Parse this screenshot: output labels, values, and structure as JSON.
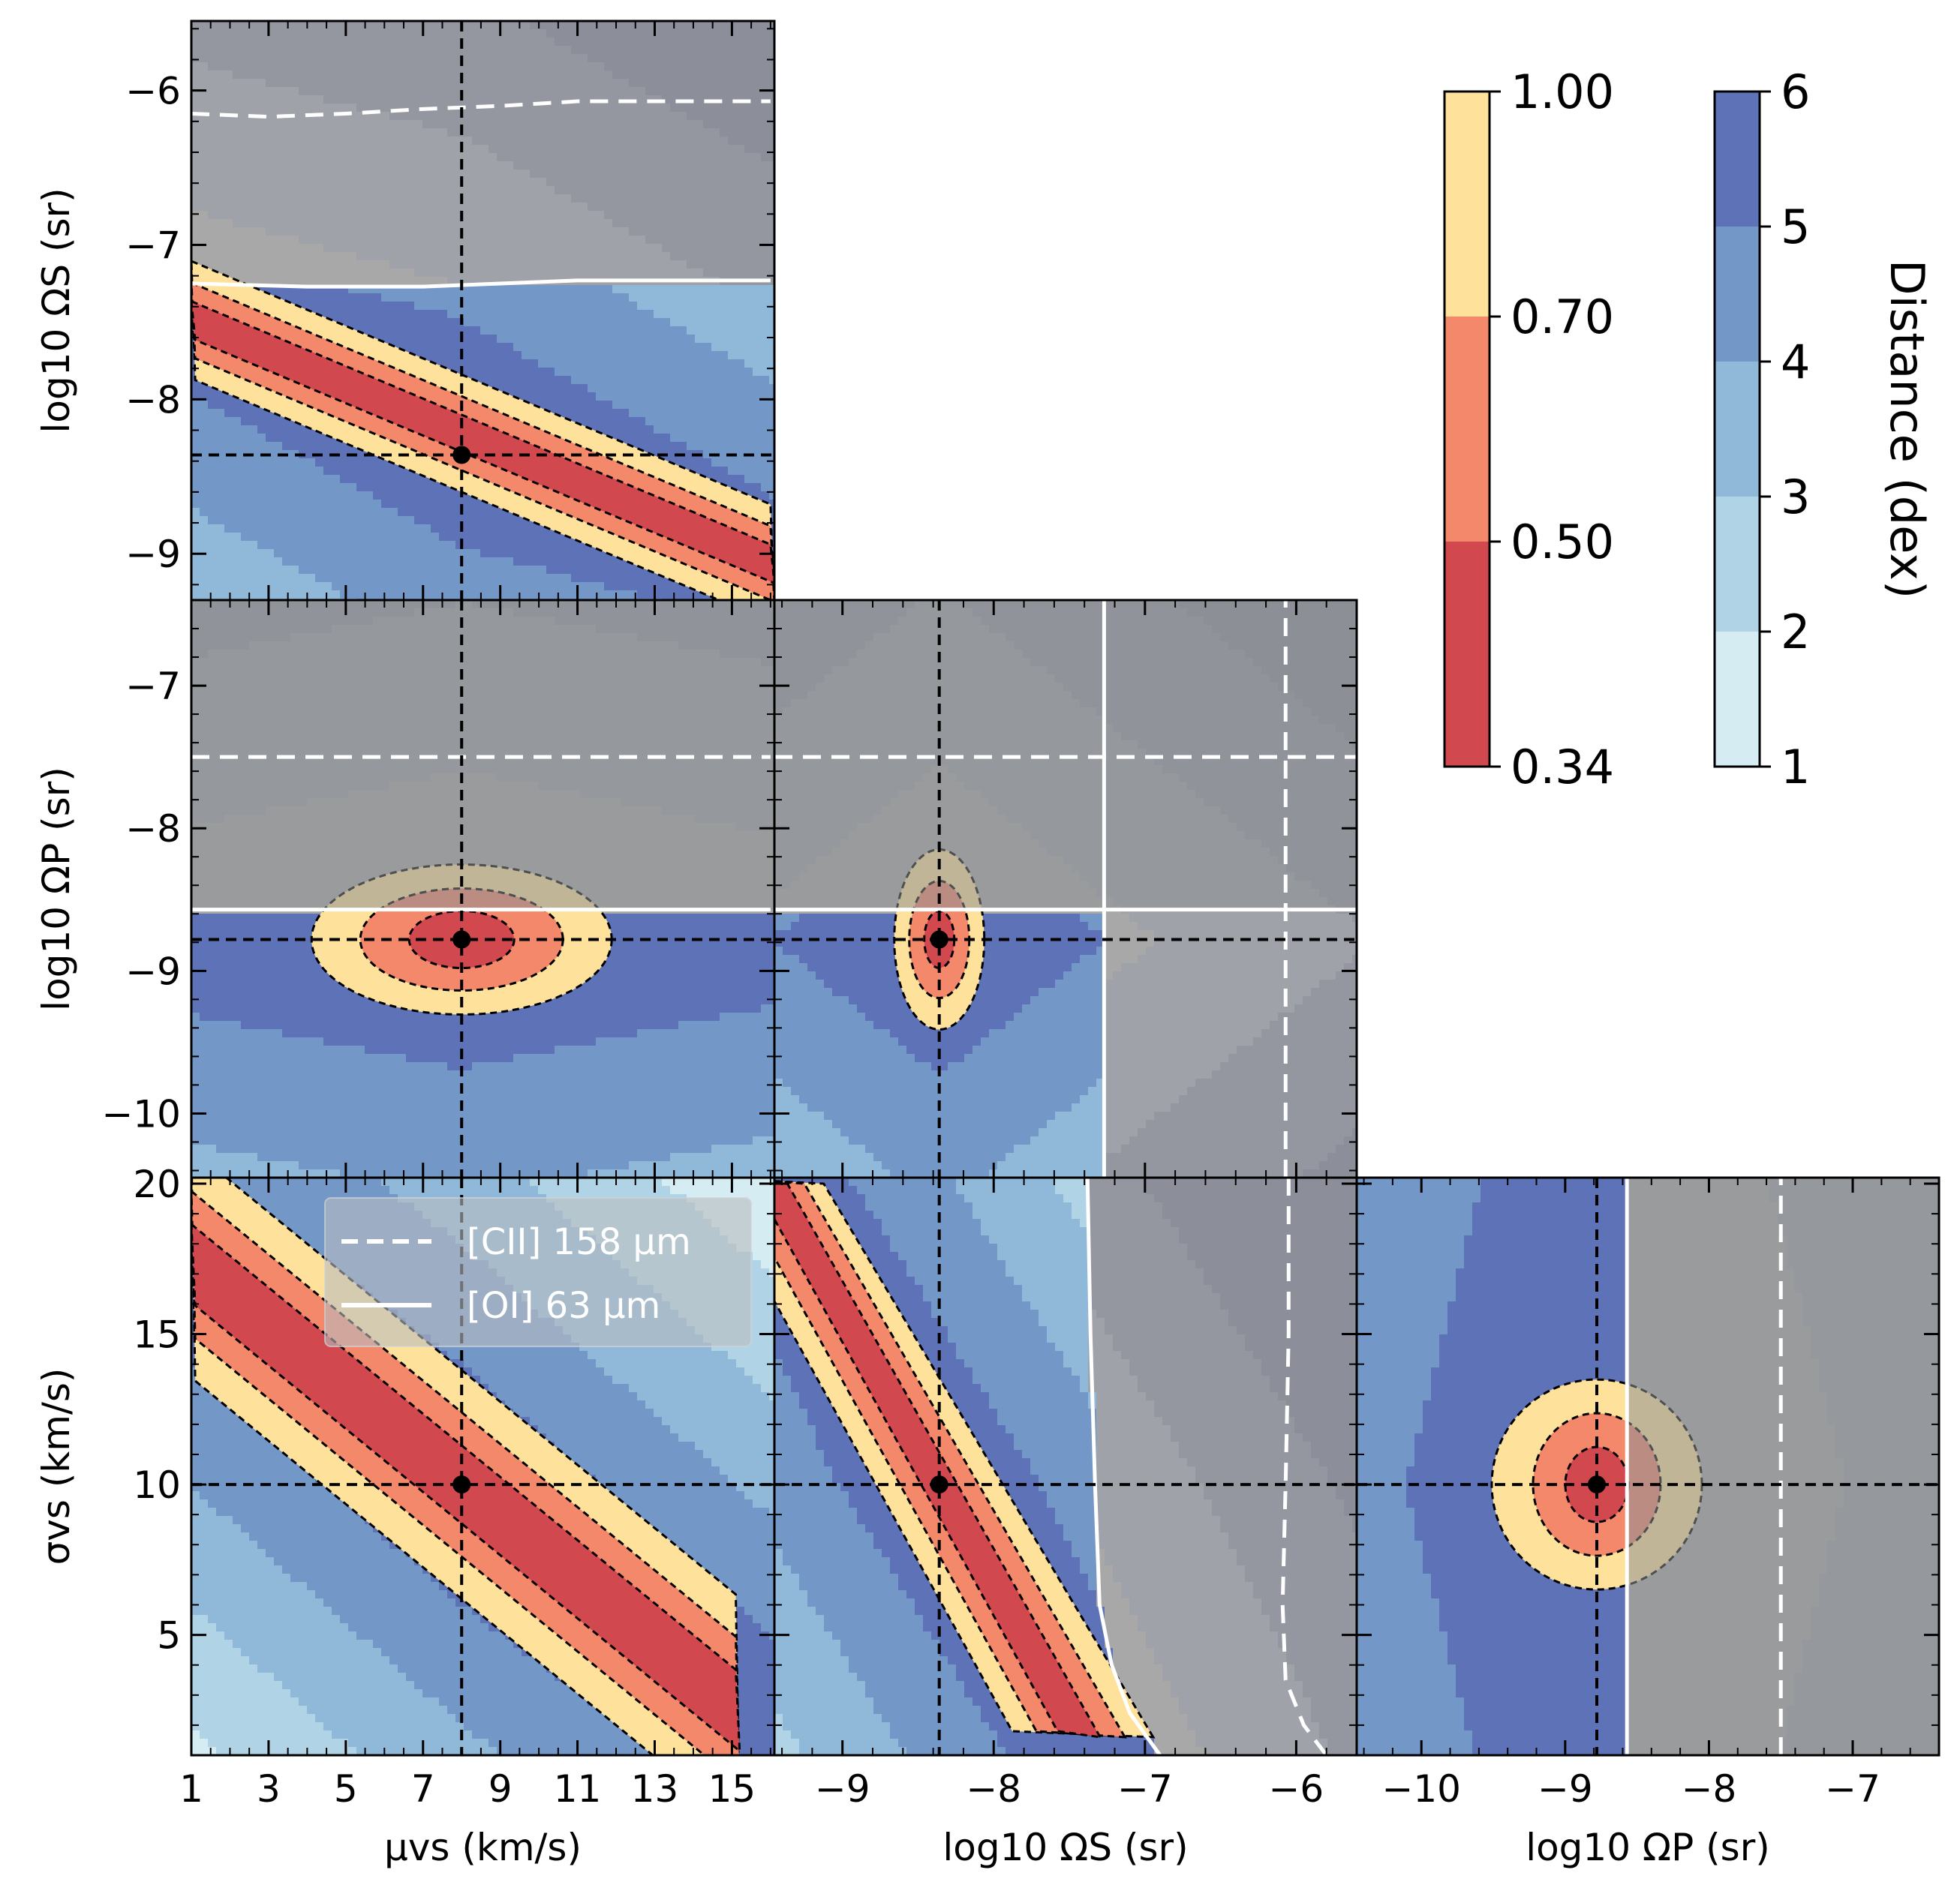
{
  "chart_data": {
    "type": "contour",
    "description_free": true,
    "colorbars": [
      {
        "name": "probability",
        "ticks": [
          "1.00",
          "0.70",
          "0.50",
          "0.34"
        ],
        "levels": [
          1.0,
          0.7,
          0.5,
          0.34
        ],
        "colors": [
          "#fee29b",
          "#f4886a",
          "#d2484f"
        ]
      },
      {
        "name": "distance",
        "title": "Distance (dex)",
        "ticks": [
          "6",
          "5",
          "4",
          "3",
          "2",
          "1"
        ],
        "levels": [
          6,
          5,
          4,
          3,
          2,
          1
        ],
        "colors": [
          "#5e72b8",
          "#7397c7",
          "#8fb8d9",
          "#b0d4e6",
          "#d5ecf3"
        ]
      }
    ],
    "legend": {
      "position": "upper-center of bottom-left panel",
      "entries": [
        {
          "label": "[CII] 158 μm",
          "style": "dashed",
          "color": "#ffffff"
        },
        {
          "label": "[OI] 63 μm",
          "style": "solid",
          "color": "#ffffff"
        }
      ]
    },
    "panels": [
      {
        "id": "mu-vs-omegaS",
        "xparam": "mu",
        "yparam": "omegaS",
        "ylabel": "log10 ΩS (sr)",
        "ylim": [
          -9.3,
          -5.55
        ],
        "yticks": [
          {
            "v": -6,
            "t": "−6"
          },
          {
            "v": -7,
            "t": "−7"
          },
          {
            "v": -8,
            "t": "−8"
          },
          {
            "v": -9,
            "t": "−9"
          }
        ],
        "truth": [
          8,
          -8.36
        ],
        "valley": {
          "a": -7.38,
          "b": -0.105
        },
        "cii": [
          [
            1,
            -6.15
          ],
          [
            3,
            -6.17
          ],
          [
            5,
            -6.15
          ],
          [
            7,
            -6.12
          ],
          [
            9,
            -6.1
          ],
          [
            11,
            -6.07
          ],
          [
            13,
            -6.07
          ],
          [
            16,
            -6.07
          ]
        ],
        "oi": [
          [
            1,
            -7.25
          ],
          [
            4,
            -7.27
          ],
          [
            7,
            -7.27
          ],
          [
            9,
            -7.25
          ],
          [
            11,
            -7.23
          ],
          [
            13,
            -7.23
          ],
          [
            16,
            -7.23
          ]
        ]
      },
      {
        "id": "mu-vs-omegaP",
        "xparam": "mu",
        "yparam": "omegaP",
        "ylabel": "log10 ΩP (sr)",
        "ylim": [
          -10.45,
          -6.4
        ],
        "yticks": [
          {
            "v": -7,
            "t": "−7"
          },
          {
            "v": -8,
            "t": "−8"
          },
          {
            "v": -9,
            "t": "−9"
          },
          {
            "v": -10,
            "t": "−10"
          }
        ],
        "truth": [
          8,
          -8.78
        ],
        "cii": [
          [
            1,
            -7.5
          ],
          [
            16,
            -7.5
          ]
        ],
        "oi": [
          [
            1,
            -8.57
          ],
          [
            16,
            -8.57
          ]
        ]
      },
      {
        "id": "omegaS-vs-omegaP",
        "xparam": "omegaS",
        "yparam": "omegaP",
        "xlim": [
          -9.45,
          -5.6
        ],
        "ylim": [
          -10.45,
          -6.4
        ],
        "truth": [
          -8.36,
          -8.78
        ],
        "cii_v": -6.07,
        "oi_v": -7.27,
        "cii_h": -7.5,
        "oi_h": -8.57
      },
      {
        "id": "mu-vs-sigma",
        "xparam": "mu",
        "yparam": "sigma",
        "xlabel": "μvs (km/s)",
        "ylabel": "σvs (km/s)",
        "xlim": [
          1,
          16.1
        ],
        "ylim": [
          1,
          20.2
        ],
        "xticks": [
          {
            "v": 1,
            "t": "1"
          },
          {
            "v": 3,
            "t": "3"
          },
          {
            "v": 5,
            "t": "5"
          },
          {
            "v": 7,
            "t": "7"
          },
          {
            "v": 9,
            "t": "9"
          },
          {
            "v": 11,
            "t": "11"
          },
          {
            "v": 13,
            "t": "13"
          },
          {
            "v": 15,
            "t": "15"
          }
        ],
        "yticks": [
          {
            "v": 5,
            "t": "5"
          },
          {
            "v": 10,
            "t": "10"
          },
          {
            "v": 15,
            "t": "15"
          },
          {
            "v": 20,
            "t": "20"
          }
        ],
        "truth": [
          8,
          10
        ]
      },
      {
        "id": "omegaS-vs-sigma",
        "xparam": "omegaS",
        "yparam": "sigma",
        "xlabel": "log10 ΩS (sr)",
        "xlim": [
          -9.45,
          -5.6
        ],
        "ylim": [
          1,
          20.2
        ],
        "xticks": [
          {
            "v": -9,
            "t": "−9"
          },
          {
            "v": -8,
            "t": "−8"
          },
          {
            "v": -7,
            "t": "−7"
          },
          {
            "v": -6,
            "t": "−6"
          }
        ],
        "truth": [
          -8.36,
          10
        ],
        "oi": [
          [
            -7.38,
            20.2
          ],
          [
            -7.36,
            15
          ],
          [
            -7.33,
            10
          ],
          [
            -7.3,
            6
          ],
          [
            -7.22,
            4
          ],
          [
            -7.1,
            2.4
          ],
          [
            -6.9,
            1
          ]
        ],
        "cii": [
          [
            -6.05,
            20.2
          ],
          [
            -6.05,
            15
          ],
          [
            -6.07,
            10
          ],
          [
            -6.09,
            6
          ],
          [
            -6.07,
            3.5
          ],
          [
            -5.95,
            2
          ],
          [
            -5.8,
            1
          ]
        ]
      },
      {
        "id": "omegaP-vs-sigma",
        "xparam": "omegaP",
        "yparam": "sigma",
        "xlabel": "log10 ΩP (sr)",
        "xlim": [
          -10.45,
          -6.4
        ],
        "ylim": [
          1,
          20.2
        ],
        "xticks": [
          {
            "v": -10,
            "t": "−10"
          },
          {
            "v": -9,
            "t": "−9"
          },
          {
            "v": -8,
            "t": "−8"
          },
          {
            "v": -7,
            "t": "−7"
          }
        ],
        "truth": [
          -8.78,
          10
        ],
        "cii_v": -7.5,
        "oi_v": -8.57
      }
    ]
  }
}
